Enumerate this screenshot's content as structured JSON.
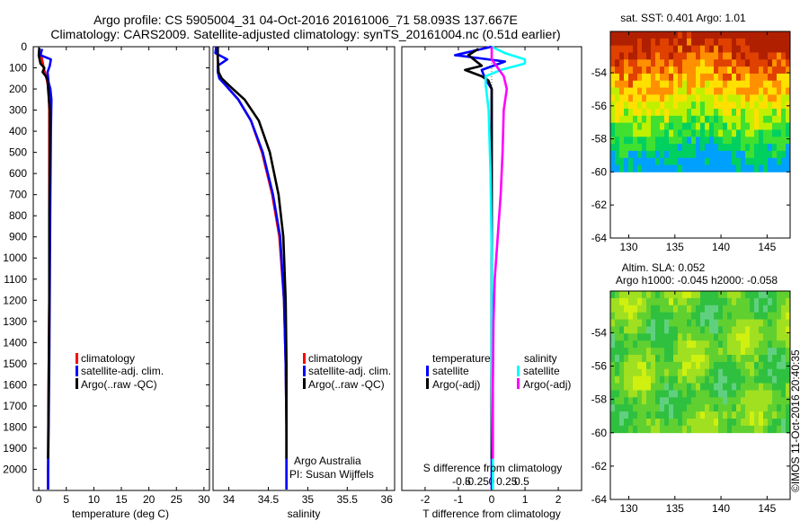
{
  "header": {
    "line1": "Argo profile: CS 5905004_31 04-Oct-2016 20161006_71 58.093S 137.667E",
    "line2": "Climatology: CARS2009. Satellite-adjusted climatology: synTS_20161004.nc (0.51d earlier)"
  },
  "footer": {
    "argo_australia": "Argo Australia",
    "pi": "PI: Susan Wijffels",
    "imos_stamp": "©IMOS 11-Oct-2016 20:40:35"
  },
  "colors": {
    "climatology": "#ff0000",
    "satellite": "#0000ff",
    "argo": "#000000",
    "sal_satellite": "#00ffff",
    "sal_argo": "#ff00ff"
  },
  "chart_data": [
    {
      "id": "temperature",
      "type": "line",
      "xlabel": "temperature (deg C)",
      "xlim": [
        -1,
        31
      ],
      "xticks": [
        "0",
        "5",
        "10",
        "15",
        "20",
        "25",
        "30"
      ],
      "ylim": [
        2100,
        0
      ],
      "yticks": [
        "0",
        "100",
        "200",
        "300",
        "400",
        "500",
        "600",
        "700",
        "800",
        "900",
        "1000",
        "1100",
        "1200",
        "1300",
        "1400",
        "1500",
        "1600",
        "1700",
        "1800",
        "1900",
        "2000"
      ],
      "legend": [
        "climatology",
        "satellite-adj. clim.",
        "Argo(..raw -QC)"
      ],
      "series": [
        {
          "name": "climatology",
          "color": "#ff0000",
          "points": [
            [
              0.3,
              30
            ],
            [
              0.6,
              60
            ],
            [
              0.9,
              100
            ],
            [
              1.2,
              130
            ],
            [
              1.5,
              160
            ],
            [
              1.8,
              200
            ],
            [
              1.9,
              300
            ],
            [
              1.9,
              500
            ],
            [
              1.9,
              800
            ],
            [
              1.9,
              1200
            ],
            [
              1.8,
              1600
            ],
            [
              1.7,
              2000
            ],
            [
              1.7,
              2150
            ]
          ]
        },
        {
          "name": "satellite-adj. clim.",
          "color": "#0000ff",
          "points": [
            [
              0.6,
              10
            ],
            [
              0.3,
              40
            ],
            [
              2.2,
              60
            ],
            [
              2.0,
              90
            ],
            [
              1.6,
              120
            ],
            [
              1.8,
              170
            ],
            [
              2.1,
              200
            ],
            [
              2.3,
              250
            ],
            [
              2.2,
              400
            ],
            [
              2.1,
              700
            ],
            [
              2.0,
              1100
            ],
            [
              1.9,
              1500
            ],
            [
              1.8,
              1800
            ],
            [
              1.7,
              2000
            ],
            [
              1.7,
              2150
            ]
          ]
        },
        {
          "name": "Argo(..raw -QC)",
          "color": "#000000",
          "points": [
            [
              0.1,
              5
            ],
            [
              0.0,
              40
            ],
            [
              0.3,
              80
            ],
            [
              1.0,
              100
            ],
            [
              0.7,
              120
            ],
            [
              1.3,
              140
            ],
            [
              1.6,
              160
            ],
            [
              1.7,
              200
            ],
            [
              2.0,
              300
            ],
            [
              2.0,
              500
            ],
            [
              1.9,
              800
            ],
            [
              1.9,
              1200
            ],
            [
              1.8,
              1600
            ],
            [
              1.7,
              1950
            ]
          ]
        }
      ]
    },
    {
      "id": "salinity",
      "type": "line",
      "xlabel": "salinity",
      "xlim": [
        33.8,
        36.1
      ],
      "xticks": [
        "34",
        "34.5",
        "35",
        "35.5",
        "36"
      ],
      "ylim": [
        2100,
        0
      ],
      "legend": [
        "climatology",
        "satellite-adj. clim.",
        "Argo(..raw -QC)"
      ],
      "series": [
        {
          "name": "climatology",
          "color": "#ff0000",
          "points": [
            [
              33.85,
              0
            ],
            [
              33.86,
              60
            ],
            [
              33.87,
              120
            ],
            [
              33.9,
              150
            ],
            [
              34.0,
              200
            ],
            [
              34.12,
              250
            ],
            [
              34.28,
              350
            ],
            [
              34.42,
              500
            ],
            [
              34.55,
              700
            ],
            [
              34.64,
              900
            ],
            [
              34.7,
              1200
            ],
            [
              34.72,
              1500
            ],
            [
              34.73,
              1800
            ],
            [
              34.73,
              2000
            ],
            [
              34.73,
              2150
            ]
          ]
        },
        {
          "name": "satellite-adj. clim.",
          "color": "#0000ff",
          "points": [
            [
              33.84,
              0
            ],
            [
              33.83,
              30
            ],
            [
              33.98,
              60
            ],
            [
              33.86,
              90
            ],
            [
              33.86,
              120
            ],
            [
              33.88,
              150
            ],
            [
              34.0,
              200
            ],
            [
              34.12,
              250
            ],
            [
              34.28,
              350
            ],
            [
              34.43,
              500
            ],
            [
              34.56,
              700
            ],
            [
              34.65,
              900
            ],
            [
              34.7,
              1200
            ],
            [
              34.72,
              1500
            ],
            [
              34.73,
              1800
            ],
            [
              34.73,
              2000
            ],
            [
              34.73,
              2150
            ]
          ]
        },
        {
          "name": "Argo(..raw -QC)",
          "color": "#000000",
          "points": [
            [
              33.86,
              0
            ],
            [
              33.86,
              60
            ],
            [
              33.87,
              120
            ],
            [
              33.91,
              150
            ],
            [
              34.05,
              200
            ],
            [
              34.2,
              250
            ],
            [
              34.38,
              350
            ],
            [
              34.52,
              500
            ],
            [
              34.63,
              700
            ],
            [
              34.69,
              900
            ],
            [
              34.72,
              1200
            ],
            [
              34.73,
              1500
            ],
            [
              34.73,
              1800
            ],
            [
              34.73,
              1950
            ]
          ]
        }
      ]
    },
    {
      "id": "differences",
      "type": "line",
      "xlabel": "T difference from climatology",
      "xlabel_top": "S difference from climatology",
      "xlim": [
        -2.7,
        2.7
      ],
      "xticks": [
        "-2",
        "-1",
        "0",
        "1",
        "2"
      ],
      "xticks_top": [
        "-0.5",
        "-0.25",
        "0",
        "0.25",
        "0.5"
      ],
      "ylim": [
        2100,
        0
      ],
      "legend_temperature_title": "temperature",
      "legend_salinity_title": "salinity",
      "legend_temperature": [
        "satellite",
        "Argo(-adj)"
      ],
      "legend_salinity": [
        "satellite",
        "Argo(-adj)"
      ],
      "series": [
        {
          "name": "temperature satellite",
          "color": "#0000ff",
          "points": [
            [
              0.0,
              0
            ],
            [
              -1.1,
              40
            ],
            [
              0.4,
              70
            ],
            [
              -0.3,
              110
            ],
            [
              -0.2,
              150
            ],
            [
              0.0,
              200
            ],
            [
              0.0,
              500
            ],
            [
              0.0,
              1000
            ],
            [
              0.0,
              1500
            ],
            [
              0.0,
              2000
            ],
            [
              0.0,
              2150
            ]
          ]
        },
        {
          "name": "temperature Argo(-adj)",
          "color": "#000000",
          "points": [
            [
              -0.4,
              10
            ],
            [
              -0.7,
              40
            ],
            [
              -0.3,
              90
            ],
            [
              -0.8,
              110
            ],
            [
              -0.3,
              140
            ],
            [
              -0.1,
              160
            ],
            [
              0.0,
              200
            ],
            [
              0.0,
              500
            ],
            [
              0.0,
              1000
            ],
            [
              0.0,
              1500
            ],
            [
              0.0,
              1950
            ]
          ]
        },
        {
          "name": "salinity satellite",
          "color": "#00ffff",
          "points": [
            [
              0.0,
              0
            ],
            [
              0.22,
              30
            ],
            [
              0.55,
              60
            ],
            [
              0.55,
              80
            ],
            [
              0.15,
              110
            ],
            [
              -0.1,
              140
            ],
            [
              -0.1,
              180
            ],
            [
              -0.05,
              300
            ],
            [
              -0.02,
              600
            ],
            [
              0.0,
              1000
            ],
            [
              0.0,
              1500
            ],
            [
              0.02,
              2000
            ],
            [
              0.02,
              2150
            ]
          ]
        },
        {
          "name": "salinity Argo(-adj)",
          "color": "#ff00ff",
          "points": [
            [
              0.0,
              0
            ],
            [
              0.0,
              60
            ],
            [
              0.1,
              100
            ],
            [
              0.2,
              140
            ],
            [
              0.25,
              200
            ],
            [
              0.2,
              300
            ],
            [
              0.18,
              500
            ],
            [
              0.15,
              700
            ],
            [
              0.1,
              900
            ],
            [
              0.05,
              1100
            ],
            [
              0.03,
              1300
            ],
            [
              0.02,
              1600
            ],
            [
              0.02,
              1950
            ]
          ]
        }
      ]
    },
    {
      "id": "sst_map",
      "type": "heatmap",
      "title": "sat. SST: 0.401 Argo: 1.01",
      "xlim": [
        128,
        147.5
      ],
      "ylim": [
        -64,
        -51.5
      ],
      "xticks": [
        "130",
        "135",
        "140",
        "145"
      ],
      "yticks": [
        "-54",
        "-56",
        "-58",
        "-60",
        "-62",
        "-64"
      ],
      "data_lat_range": [
        -60,
        -51.5
      ],
      "colormap": [
        "#00a0ff",
        "#00d060",
        "#40e030",
        "#c0f000",
        "#ffe000",
        "#ff9000",
        "#e04000",
        "#b02000"
      ]
    },
    {
      "id": "sla_map",
      "type": "heatmap",
      "title": "Altim. SLA: 0.052",
      "subtitle": "Argo h1000: -0.045 h2000: -0.058",
      "xlim": [
        128,
        147.5
      ],
      "ylim": [
        -64,
        -51.5
      ],
      "xticks": [
        "130",
        "135",
        "140",
        "145"
      ],
      "yticks": [
        "-54",
        "-56",
        "-58",
        "-60",
        "-62",
        "-64"
      ],
      "data_lat_range": [
        -60,
        -51.5
      ],
      "colormap": [
        "#60d080",
        "#30c040",
        "#60d030",
        "#a0e020",
        "#d0f010"
      ]
    }
  ]
}
